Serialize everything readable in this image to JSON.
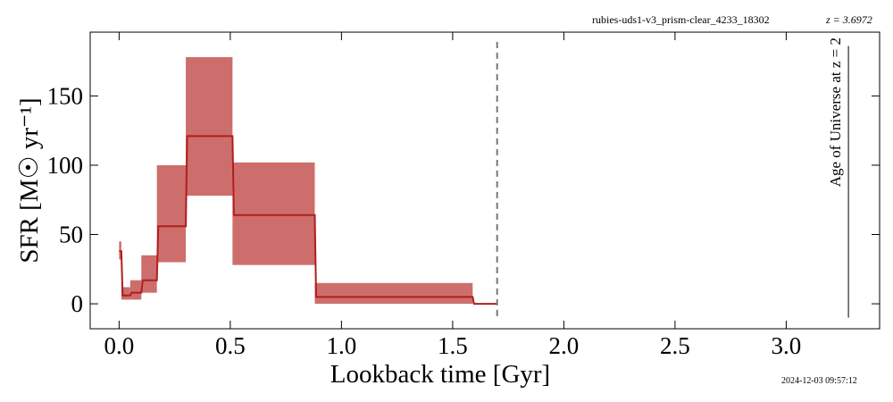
{
  "header": {
    "object_id": "rubies-uds1-v3_prism-clear_4233_18302",
    "redshift_label": "z = 3.6972",
    "timestamp": "2024-12-03 09:57:12"
  },
  "chart_data": {
    "type": "line",
    "xlabel": "Lookback time [Gyr]",
    "ylabel": "SFR [M☉ yr⁻¹]",
    "xlim": [
      -0.13,
      3.42
    ],
    "ylim": [
      -18,
      196
    ],
    "xticks": [
      0.0,
      0.5,
      1.0,
      1.5,
      2.0,
      2.5,
      3.0
    ],
    "xtick_labels": [
      "0.0",
      "0.5",
      "1.0",
      "1.5",
      "2.0",
      "2.5",
      "3.0"
    ],
    "yticks": [
      0,
      50,
      100,
      150
    ],
    "ytick_labels": [
      "0",
      "50",
      "100",
      "150"
    ],
    "grid": false,
    "colors": {
      "band": "#cd6e6c",
      "line": "#b01e1e",
      "dashed": "#777777",
      "age_line": "#555555"
    },
    "sfh_bins": [
      {
        "t0": 0.0,
        "t1": 0.01,
        "median": 38,
        "lo": 32,
        "hi": 45
      },
      {
        "t0": 0.01,
        "t1": 0.05,
        "median": 6,
        "lo": 3,
        "hi": 12
      },
      {
        "t0": 0.05,
        "t1": 0.1,
        "median": 8,
        "lo": 3,
        "hi": 17
      },
      {
        "t0": 0.1,
        "t1": 0.17,
        "median": 17,
        "lo": 8,
        "hi": 35
      },
      {
        "t0": 0.17,
        "t1": 0.3,
        "median": 56,
        "lo": 30,
        "hi": 100
      },
      {
        "t0": 0.3,
        "t1": 0.51,
        "median": 121,
        "lo": 78,
        "hi": 178
      },
      {
        "t0": 0.51,
        "t1": 0.88,
        "median": 64,
        "lo": 28,
        "hi": 102
      },
      {
        "t0": 0.88,
        "t1": 1.59,
        "median": 5,
        "lo": 0,
        "hi": 15
      },
      {
        "t0": 1.59,
        "t1": 1.7,
        "median": 0,
        "lo": 0,
        "hi": 0
      }
    ],
    "universe_age_line": {
      "x": 1.7,
      "style": "dashed"
    },
    "age_at_z2": {
      "x": 3.28,
      "label": "Age of Universe at z = 2"
    }
  }
}
